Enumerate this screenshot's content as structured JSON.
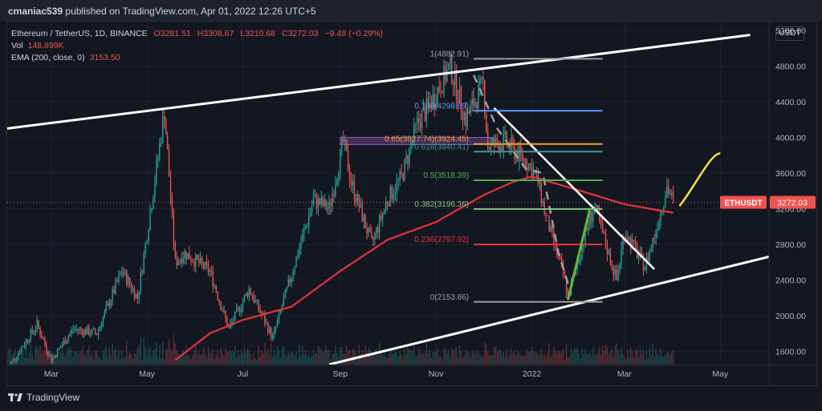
{
  "header": {
    "publisher": "cmaniac539",
    "published_text": "published on TradingView.com, Apr 01, 2022 12:26 UTC+5"
  },
  "legend": {
    "symbol": "Ethereum / TetherUS, 1D, BINANCE",
    "open": "O3281.51",
    "high": "H3308.67",
    "low": "L3210.68",
    "close": "C3272.03",
    "change": "−9.48 (−0.29%)",
    "vol_label": "Vol",
    "vol_value": "148.899K",
    "ema_label": "EMA (200, close, 0)",
    "ema_value": "3153.50"
  },
  "currency": "USDT",
  "footer": {
    "brand": "TradingView"
  },
  "colors": {
    "background": "#131722",
    "up": "#26a69a",
    "down": "#ef5350",
    "ema": "#e8313a",
    "trendline": "#ffffff",
    "projection": "#f5e13a",
    "breakout": "#5fb83d"
  },
  "chart_data": {
    "type": "candlestick",
    "symbol": "ETHUSDT",
    "ylim": [
      1450,
      5300
    ],
    "y_ticks": [
      "5200.00",
      "4800.00",
      "4400.00",
      "4000.00",
      "3600.00",
      "3200.00",
      "2800.00",
      "2400.00",
      "2000.00",
      "1600.00"
    ],
    "y_tick_values": [
      5200,
      4800,
      4400,
      4000,
      3600,
      3200,
      2800,
      2400,
      2000,
      1600
    ],
    "x_ticks": [
      "Mar",
      "May",
      "Jul",
      "Sep",
      "Nov",
      "2022",
      "Mar",
      "May"
    ],
    "x_tick_dates": [
      "2021-03-01",
      "2021-05-01",
      "2021-07-01",
      "2021-09-01",
      "2021-11-01",
      "2022-01-01",
      "2022-03-01",
      "2022-05-01"
    ],
    "x_range": [
      "2021-02-01",
      "2022-06-01"
    ],
    "last_price_label": "ETHUSDT",
    "last_price": "3272.03",
    "last_price_value": 3272.03,
    "price_path": [
      [
        "2021-02-01",
        1400
      ],
      [
        "2021-02-20",
        1900
      ],
      [
        "2021-03-01",
        1500
      ],
      [
        "2021-03-15",
        1850
      ],
      [
        "2021-03-30",
        1800
      ],
      [
        "2021-04-15",
        2500
      ],
      [
        "2021-04-25",
        2200
      ],
      [
        "2021-05-05",
        3400
      ],
      [
        "2021-05-12",
        4300
      ],
      [
        "2021-05-19",
        2600
      ],
      [
        "2021-05-25",
        2700
      ],
      [
        "2021-06-10",
        2500
      ],
      [
        "2021-06-22",
        1850
      ],
      [
        "2021-07-05",
        2300
      ],
      [
        "2021-07-20",
        1750
      ],
      [
        "2021-08-05",
        2700
      ],
      [
        "2021-08-15",
        3300
      ],
      [
        "2021-08-25",
        3200
      ],
      [
        "2021-09-03",
        3950
      ],
      [
        "2021-09-08",
        3500
      ],
      [
        "2021-09-21",
        2800
      ],
      [
        "2021-10-01",
        3300
      ],
      [
        "2021-10-10",
        3550
      ],
      [
        "2021-10-20",
        4150
      ],
      [
        "2021-10-29",
        4400
      ],
      [
        "2021-11-10",
        4800
      ],
      [
        "2021-11-20",
        4200
      ],
      [
        "2021-12-01",
        4600
      ],
      [
        "2021-12-04",
        3900
      ],
      [
        "2021-12-15",
        3950
      ],
      [
        "2021-12-30",
        3700
      ],
      [
        "2022-01-05",
        3500
      ],
      [
        "2022-01-10",
        3100
      ],
      [
        "2022-01-22",
        2400
      ],
      [
        "2022-01-24",
        2200
      ],
      [
        "2022-02-07",
        3100
      ],
      [
        "2022-02-10",
        3200
      ],
      [
        "2022-02-24",
        2400
      ],
      [
        "2022-03-01",
        2950
      ],
      [
        "2022-03-14",
        2550
      ],
      [
        "2022-03-20",
        2900
      ],
      [
        "2022-03-28",
        3450
      ],
      [
        "2022-04-01",
        3272
      ]
    ],
    "ema_200": [
      [
        "2021-05-19",
        1500
      ],
      [
        "2021-06-10",
        1800
      ],
      [
        "2021-07-01",
        1950
      ],
      [
        "2021-08-01",
        2100
      ],
      [
        "2021-09-01",
        2500
      ],
      [
        "2021-10-01",
        2850
      ],
      [
        "2021-11-01",
        3050
      ],
      [
        "2021-12-01",
        3350
      ],
      [
        "2021-12-20",
        3500
      ],
      [
        "2022-01-01",
        3560
      ],
      [
        "2022-02-01",
        3400
      ],
      [
        "2022-03-01",
        3250
      ],
      [
        "2022-04-01",
        3153.5
      ]
    ],
    "fibonacci": [
      {
        "label": "1(4882.91)",
        "value": 4882.91,
        "color": "#9e9e9e"
      },
      {
        "label": "0.786(4298.89)",
        "value": 4298.89,
        "color": "#5b9cf6"
      },
      {
        "label": "0.65(3927.74)(3924.45)",
        "value": 3926,
        "color": "#f0a030"
      },
      {
        "label": "0.618(3840.41)",
        "value": 3840.41,
        "color": "#3d9a8f"
      },
      {
        "label": "0.5(3518.39)",
        "value": 3518.39,
        "color": "#4caf50"
      },
      {
        "label": "0.382(3196.36)",
        "value": 3196.36,
        "color": "#81c784"
      },
      {
        "label": "0.236(2797.92)",
        "value": 2797.92,
        "color": "#e8313a"
      },
      {
        "label": "0(2153.86)",
        "value": 2153.86,
        "color": "#9e9e9e"
      }
    ],
    "fib_range": [
      "2021-11-25",
      "2022-02-15"
    ],
    "channel_upper": [
      [
        "2021-02-01",
        4100
      ],
      [
        "2022-05-20",
        5150
      ]
    ],
    "channel_lower": [
      [
        "2021-08-25",
        1450
      ],
      [
        "2022-06-01",
        2660
      ]
    ],
    "descending_trendline": [
      [
        "2021-12-08",
        4330
      ],
      [
        "2022-03-20",
        2520
      ]
    ],
    "breakout_line": [
      [
        "2022-01-24",
        2180
      ],
      [
        "2022-02-07",
        3200
      ]
    ],
    "projection_path": [
      [
        "2022-04-05",
        3230
      ],
      [
        "2022-04-15",
        3450
      ],
      [
        "2022-04-25",
        3830
      ],
      [
        "2022-05-01",
        3820
      ]
    ],
    "highlight_zone": {
      "from": "2021-09-01",
      "to": "2021-12-08",
      "top": 4000,
      "bottom": 3920
    }
  }
}
